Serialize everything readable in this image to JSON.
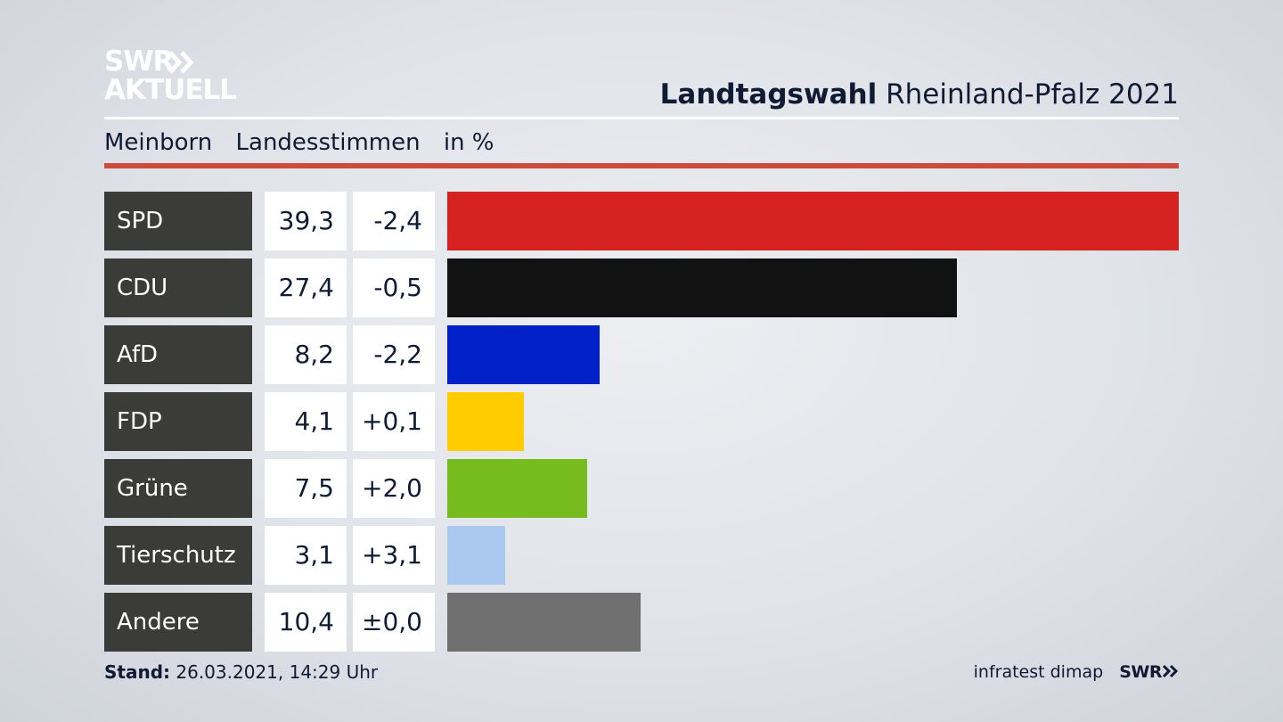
{
  "brand": {
    "logo_line1": "SWR",
    "logo_line2": "AKTUELL"
  },
  "header": {
    "title_bold": "Landtagswahl",
    "title_rest": "Rheinland-Pfalz 2021"
  },
  "subtitle": {
    "place": "Meinborn",
    "vote_type": "Landesstimmen",
    "unit": "in %"
  },
  "colors": {
    "rule_red": "#cf4a3c",
    "party_label_bg": "#3b3b39"
  },
  "chart_data": {
    "type": "bar",
    "orientation": "horizontal",
    "categories": [
      "SPD",
      "CDU",
      "AfD",
      "FDP",
      "Grüne",
      "Tierschutz",
      "Andere"
    ],
    "values": [
      39.3,
      27.4,
      8.2,
      4.1,
      7.5,
      3.1,
      10.4
    ],
    "value_labels": [
      "39,3",
      "27,4",
      "8,2",
      "4,1",
      "7,5",
      "3,1",
      "10,4"
    ],
    "change_labels": [
      "-2,4",
      "-0,5",
      "-2,2",
      "+0,1",
      "+2,0",
      "+3,1",
      "±0,0"
    ],
    "bar_colors": [
      "#d62121",
      "#121212",
      "#0021c8",
      "#ffcc00",
      "#76bc1e",
      "#aac8f0",
      "#707070"
    ],
    "title": "Landtagswahl Rheinland-Pfalz 2021",
    "xlabel": "",
    "ylabel": "",
    "unit": "in %",
    "xlim": [
      0,
      39.3
    ],
    "grid": false
  },
  "footer": {
    "stand_label": "Stand:",
    "stand_value": "26.03.2021, 14:29 Uhr",
    "source": "infratest dimap",
    "brand_small": "SWR"
  }
}
